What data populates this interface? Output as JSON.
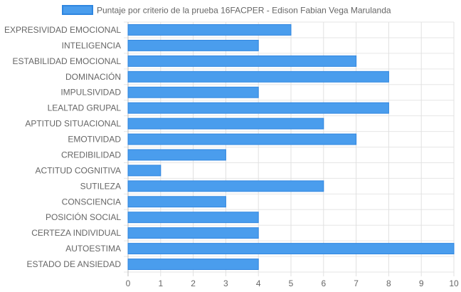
{
  "chart_data": {
    "type": "bar",
    "orientation": "horizontal",
    "categories": [
      "EXPRESIVIDAD EMOCIONAL",
      "INTELIGENCIA",
      "ESTABILIDAD EMOCIONAL",
      "DOMINACIÓN",
      "IMPULSIVIDAD",
      "LEALTAD GRUPAL",
      "APTITUD SITUACIONAL",
      "EMOTIVIDAD",
      "CREDIBILIDAD",
      "ACTITUD COGNITIVA",
      "SUTILEZA",
      "CONSCIENCIA",
      "POSICIÓN SOCIAL",
      "CERTEZA INDIVIDUAL",
      "AUTOESTIMA",
      "ESTADO DE ANSIEDAD"
    ],
    "series": [
      {
        "name": "Puntaje por criterio de la prueba 16FACPER - Edison Fabian Vega Marulanda",
        "values": [
          5,
          4,
          7,
          8,
          4,
          8,
          6,
          7,
          3,
          1,
          6,
          3,
          4,
          4,
          10,
          4
        ],
        "color": "#4a9ded",
        "border_color": "#2f86e0"
      }
    ],
    "xlim": [
      0,
      10
    ],
    "xticks": [
      "0",
      "1",
      "2",
      "3",
      "4",
      "5",
      "6",
      "7",
      "8",
      "9",
      "10"
    ],
    "grid": true,
    "legend_position": "top"
  }
}
